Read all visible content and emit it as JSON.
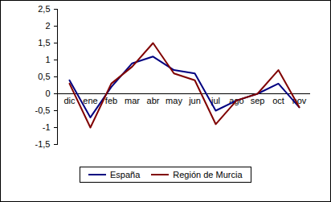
{
  "chart_data": {
    "type": "line",
    "categories": [
      "dic",
      "ene",
      "feb",
      "mar",
      "abr",
      "may",
      "jun",
      "jul",
      "ago",
      "sep",
      "oct",
      "nov"
    ],
    "series": [
      {
        "name": "España",
        "color": "#000080",
        "values": [
          0.4,
          -0.7,
          0.2,
          0.9,
          1.1,
          0.7,
          0.6,
          -0.5,
          -0.2,
          0.0,
          0.3,
          -0.4
        ]
      },
      {
        "name": "Región de Murcia",
        "color": "#800000",
        "values": [
          0.3,
          -1.0,
          0.3,
          0.8,
          1.5,
          0.6,
          0.4,
          -0.9,
          -0.2,
          0.0,
          0.7,
          -0.4
        ]
      }
    ],
    "ylim": [
      -1.5,
      2.5
    ],
    "yticks": [
      {
        "value": -1.5,
        "label": "-1,5"
      },
      {
        "value": -1,
        "label": "-1"
      },
      {
        "value": -0.5,
        "label": "-0,5"
      },
      {
        "value": 0,
        "label": "0"
      },
      {
        "value": 0.5,
        "label": "0,5"
      },
      {
        "value": 1,
        "label": "1"
      },
      {
        "value": 1.5,
        "label": "1,5"
      },
      {
        "value": 2,
        "label": "2"
      },
      {
        "value": 2.5,
        "label": "2,5"
      }
    ],
    "grid": false,
    "legend": "bottom"
  }
}
